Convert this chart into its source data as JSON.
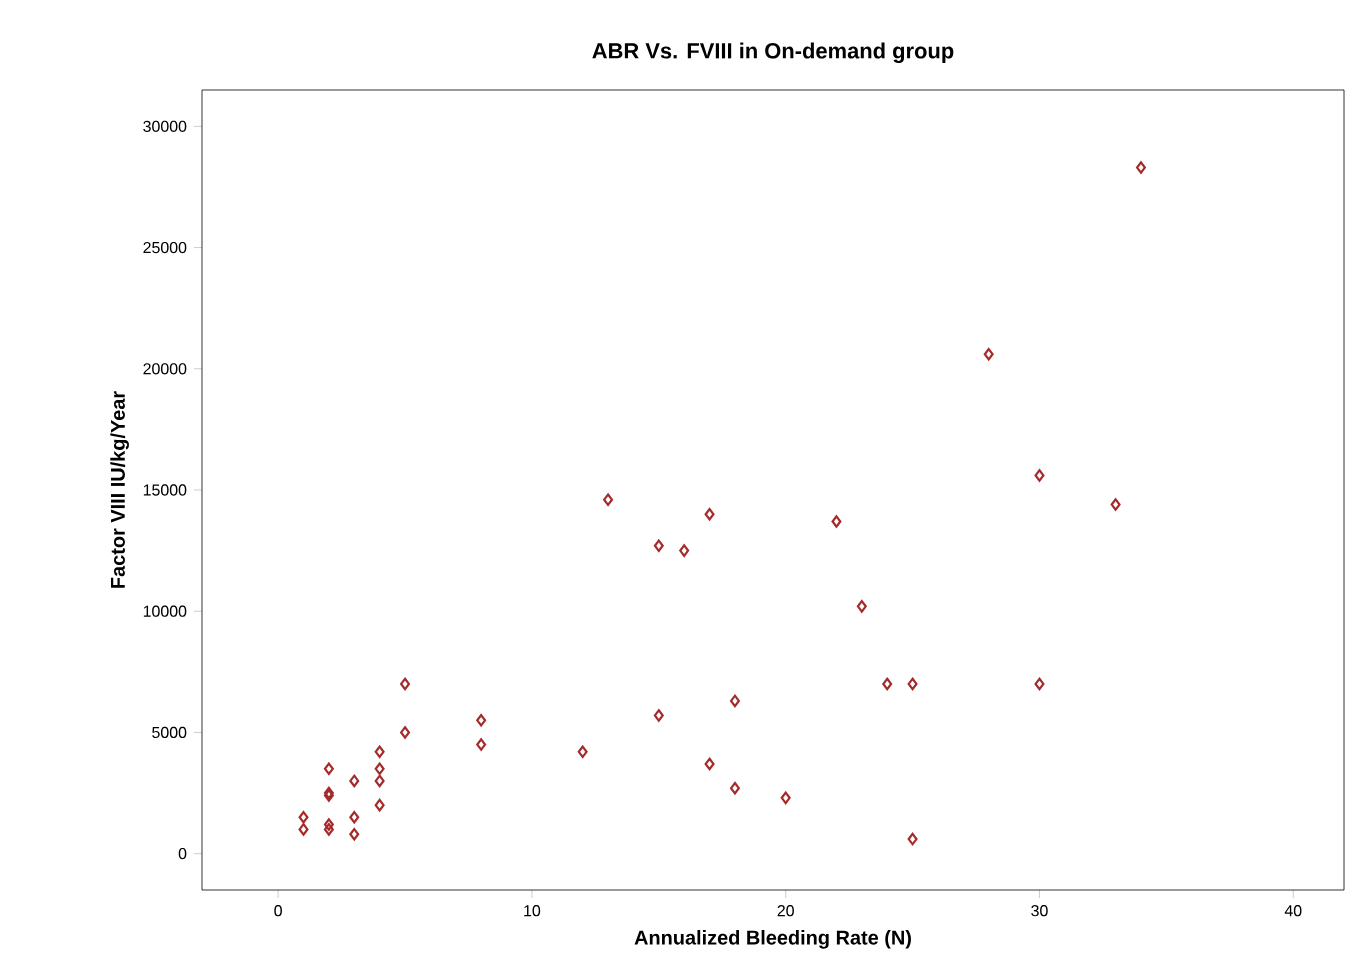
{
  "chart_data": {
    "type": "scatter",
    "title": "ABR Vs. FVIII in On-demand group",
    "xlabel": "Annualized Bleeding Rate (N)",
    "ylabel": "Factor VIII IU/kg/Year",
    "marker": "diamond",
    "grid": false,
    "xlim": [
      -3,
      42
    ],
    "ylim": [
      -1500,
      31500
    ],
    "xticks": [
      0,
      10,
      20,
      30,
      40
    ],
    "yticks": [
      0,
      5000,
      10000,
      15000,
      20000,
      25000,
      30000
    ],
    "series": [
      {
        "color": "#a52a2a",
        "x": [
          1,
          1,
          2,
          2,
          2,
          2,
          2,
          3,
          3,
          3,
          4,
          4,
          4,
          4,
          5,
          5,
          8,
          8,
          12,
          13,
          15,
          15,
          16,
          17,
          17,
          18,
          18,
          20,
          22,
          23,
          24,
          25,
          25,
          28,
          30,
          30,
          33,
          34
        ],
        "values": [
          1500,
          1000,
          3500,
          2500,
          2400,
          1200,
          1000,
          3000,
          1500,
          800,
          4200,
          3500,
          3000,
          2000,
          7000,
          5000,
          5500,
          4500,
          4200,
          14600,
          12700,
          5700,
          12500,
          14000,
          3700,
          6300,
          2700,
          2300,
          13700,
          10200,
          7000,
          7000,
          600,
          20600,
          15600,
          7000,
          14400,
          28300
        ]
      }
    ]
  }
}
